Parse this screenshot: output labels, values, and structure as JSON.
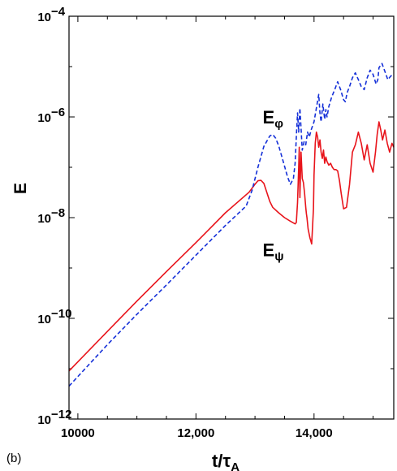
{
  "panel_label": "(b)",
  "chart_data": {
    "type": "line",
    "title": "",
    "xlabel": {
      "main": "t/τ",
      "sub": "A"
    },
    "ylabel": "E",
    "xlim": [
      9850,
      15350
    ],
    "ylim": [
      1e-12,
      0.0001
    ],
    "yscale": "log",
    "grid": false,
    "xticks": [
      {
        "value": 10000,
        "label": "10000"
      },
      {
        "value": 12000,
        "label": "12,000"
      },
      {
        "value": 14000,
        "label": "14,000"
      }
    ],
    "yticks": [
      {
        "value": 1e-12,
        "base": "10",
        "exp": "−12"
      },
      {
        "value": 1e-10,
        "base": "10",
        "exp": "−10"
      },
      {
        "value": 1e-08,
        "base": "10",
        "exp": "−8"
      },
      {
        "value": 1e-06,
        "base": "10",
        "exp": "−6"
      },
      {
        "value": 0.0001,
        "base": "10",
        "exp": "−4"
      }
    ],
    "annotations": [
      {
        "main": "E",
        "sub": "φ",
        "x": 13130,
        "y": 1e-06
      },
      {
        "main": "E",
        "sub": "ψ",
        "x": 13130,
        "y": 2.3e-09
      }
    ],
    "series": [
      {
        "name": "E_ψ",
        "color": "#e8141b",
        "dash": "solid",
        "x": [
          9850,
          10500,
          11000,
          11500,
          12000,
          12500,
          12900,
          13000,
          13050,
          13100,
          13150,
          13200,
          13250,
          13300,
          13400,
          13500,
          13600,
          13680,
          13700,
          13720,
          13740,
          13750,
          13760,
          13780,
          13800,
          13820,
          13840,
          13860,
          13870,
          13880,
          13900,
          13930,
          13960,
          13990,
          14000,
          14020,
          14040,
          14060,
          14080,
          14100,
          14120,
          14140,
          14160,
          14180,
          14200,
          14220,
          14250,
          14280,
          14310,
          14340,
          14370,
          14400,
          14430,
          14460,
          14500,
          14550,
          14600,
          14650,
          14700,
          14750,
          14800,
          14850,
          14900,
          14950,
          15000,
          15040,
          15070,
          15100,
          15130,
          15160,
          15200,
          15240,
          15280,
          15320,
          15350
        ],
        "y": [
          9e-12,
          5.5e-11,
          2.2e-10,
          8.5e-10,
          3.2e-09,
          1.25e-08,
          3.2e-08,
          4.6e-08,
          5.4e-08,
          5.5e-08,
          4.8e-08,
          3.2e-08,
          2.1e-08,
          1.6e-08,
          1.25e-08,
          1e-08,
          8.5e-09,
          7.5e-09,
          8e-09,
          2e-08,
          1e-07,
          2.5e-07,
          2.5e-08,
          2e-07,
          6e-08,
          5e-08,
          3e-08,
          1.6e-08,
          1.2e-08,
          1e-08,
          6e-09,
          4e-09,
          3e-09,
          1.5e-08,
          7e-08,
          3e-07,
          5e-07,
          4e-07,
          2.5e-07,
          3.5e-07,
          2e-07,
          1.5e-07,
          2.2e-07,
          1.2e-07,
          1.6e-07,
          1.3e-07,
          1.1e-07,
          1.2e-07,
          1e-07,
          9e-08,
          9e-08,
          8.5e-08,
          5.5e-08,
          3e-08,
          1.5e-08,
          1.6e-08,
          4.5e-08,
          2e-07,
          2.8e-07,
          5e-07,
          3e-07,
          1.4e-07,
          2.8e-07,
          1.2e-07,
          8e-08,
          2e-07,
          4.5e-07,
          8e-07,
          5.5e-07,
          3.5e-07,
          5.5e-07,
          3e-07,
          2e-07,
          3e-07,
          2.5e-07
        ]
      },
      {
        "name": "E_φ",
        "color": "#1530d8",
        "dash": "5,3",
        "x": [
          9850,
          10500,
          11000,
          11500,
          12000,
          12500,
          12850,
          12950,
          13050,
          13150,
          13250,
          13300,
          13350,
          13400,
          13450,
          13500,
          13550,
          13600,
          13650,
          13680,
          13700,
          13720,
          13740,
          13760,
          13780,
          13800,
          13830,
          13860,
          13890,
          13920,
          13950,
          14000,
          14040,
          14080,
          14100,
          14120,
          14150,
          14180,
          14200,
          14220,
          14250,
          14300,
          14350,
          14400,
          14450,
          14500,
          14530,
          14560,
          14600,
          14650,
          14700,
          14750,
          14800,
          14850,
          14900,
          14950,
          15000,
          15050,
          15080,
          15100,
          15150,
          15200,
          15250,
          15300,
          15350
        ],
        "y": [
          4.5e-12,
          3e-11,
          1.2e-10,
          4.6e-10,
          1.8e-09,
          7e-09,
          1.7e-08,
          3.5e-08,
          1e-07,
          2.6e-07,
          4.2e-07,
          4.5e-07,
          3.8e-07,
          2.7e-07,
          1.7e-07,
          1.05e-07,
          6.5e-08,
          4.6e-08,
          6e-08,
          1.2e-07,
          4e-07,
          1.2e-06,
          5e-07,
          1.5e-06,
          6e-07,
          2.2e-07,
          3.2e-07,
          2.8e-07,
          5e-07,
          4e-07,
          5.5e-07,
          8e-07,
          1.5e-06,
          2.8e-06,
          1.2e-06,
          8e-07,
          1.8e-06,
          9e-07,
          1.4e-06,
          1e-06,
          1.6e-06,
          2.5e-06,
          3.5e-06,
          5e-06,
          3.5e-06,
          2.2e-06,
          2e-06,
          3e-06,
          4e-06,
          6e-06,
          7.5e-06,
          5.5e-06,
          4e-06,
          3.5e-06,
          6e-06,
          8.5e-06,
          7e-06,
          4.5e-06,
          5.5e-06,
          9.5e-06,
          1.15e-05,
          8e-06,
          5.5e-06,
          6.5e-06,
          7e-06
        ]
      }
    ]
  }
}
